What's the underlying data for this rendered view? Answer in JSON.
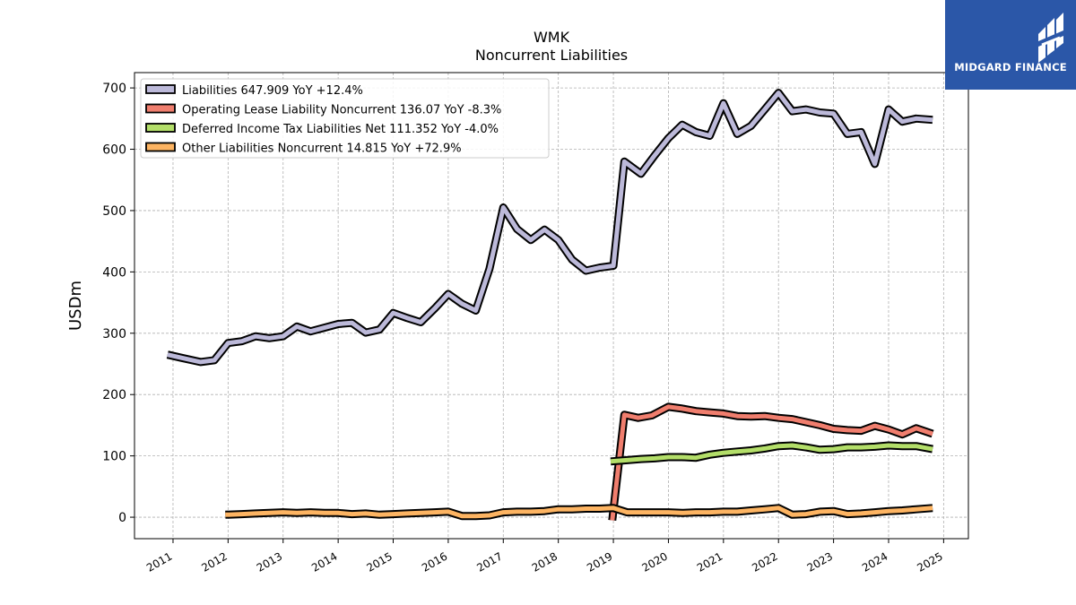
{
  "chart_data": {
    "type": "line",
    "title": "WMK",
    "subtitle": "Noncurrent  Liabilities",
    "xlabel": "",
    "ylabel": "USDm",
    "ylim": [
      -35,
      725
    ],
    "xlim": [
      2010.3,
      2025.45
    ],
    "yticks": [
      0,
      100,
      200,
      300,
      400,
      500,
      600,
      700
    ],
    "xticks": [
      "2011",
      "2012",
      "2013",
      "2014",
      "2015",
      "2016",
      "2017",
      "2018",
      "2019",
      "2020",
      "2021",
      "2022",
      "2023",
      "2024",
      "2025"
    ],
    "grid": true,
    "legend_position": "top-left",
    "series": [
      {
        "name": "Liabilities  647.909 YoY +12.4%",
        "color": "#bcb9d9",
        "points": [
          [
            2010.9,
            265
          ],
          [
            2011.15,
            260
          ],
          [
            2011.5,
            253
          ],
          [
            2011.75,
            256
          ],
          [
            2012.0,
            284
          ],
          [
            2012.25,
            287
          ],
          [
            2012.5,
            295
          ],
          [
            2012.75,
            292
          ],
          [
            2013.0,
            295
          ],
          [
            2013.25,
            311
          ],
          [
            2013.5,
            303
          ],
          [
            2013.75,
            309
          ],
          [
            2014.0,
            315
          ],
          [
            2014.25,
            317
          ],
          [
            2014.5,
            301
          ],
          [
            2014.75,
            306
          ],
          [
            2015.0,
            333
          ],
          [
            2015.25,
            325
          ],
          [
            2015.5,
            318
          ],
          [
            2015.75,
            340
          ],
          [
            2016.0,
            364
          ],
          [
            2016.25,
            348
          ],
          [
            2016.5,
            337
          ],
          [
            2016.75,
            405
          ],
          [
            2017.0,
            505
          ],
          [
            2017.25,
            470
          ],
          [
            2017.5,
            452
          ],
          [
            2017.75,
            469
          ],
          [
            2018.0,
            452
          ],
          [
            2018.25,
            420
          ],
          [
            2018.5,
            402
          ],
          [
            2018.75,
            407
          ],
          [
            2019.0,
            410
          ],
          [
            2019.2,
            580
          ],
          [
            2019.5,
            560
          ],
          [
            2019.75,
            590
          ],
          [
            2020.0,
            618
          ],
          [
            2020.25,
            640
          ],
          [
            2020.5,
            628
          ],
          [
            2020.75,
            622
          ],
          [
            2021.0,
            675
          ],
          [
            2021.25,
            625
          ],
          [
            2021.5,
            638
          ],
          [
            2021.75,
            665
          ],
          [
            2022.0,
            692
          ],
          [
            2022.25,
            662
          ],
          [
            2022.5,
            665
          ],
          [
            2022.75,
            660
          ],
          [
            2023.0,
            658
          ],
          [
            2023.25,
            625
          ],
          [
            2023.5,
            628
          ],
          [
            2023.75,
            576
          ],
          [
            2024.0,
            665
          ],
          [
            2024.25,
            645
          ],
          [
            2024.5,
            650
          ],
          [
            2024.8,
            648
          ]
        ]
      },
      {
        "name": "Operating Lease Liability Noncurrent  136.07 YoY -8.3%",
        "color": "#f07e6e",
        "points": [
          [
            2018.98,
            -5
          ],
          [
            2019.2,
            167
          ],
          [
            2019.45,
            162
          ],
          [
            2019.7,
            166
          ],
          [
            2020.0,
            180
          ],
          [
            2020.25,
            177
          ],
          [
            2020.5,
            173
          ],
          [
            2020.75,
            171
          ],
          [
            2021.0,
            169
          ],
          [
            2021.25,
            165
          ],
          [
            2021.5,
            164
          ],
          [
            2021.75,
            165
          ],
          [
            2022.0,
            162
          ],
          [
            2022.25,
            160
          ],
          [
            2022.5,
            155
          ],
          [
            2022.75,
            150
          ],
          [
            2023.0,
            144
          ],
          [
            2023.25,
            142
          ],
          [
            2023.5,
            141
          ],
          [
            2023.75,
            149
          ],
          [
            2024.0,
            143
          ],
          [
            2024.25,
            135
          ],
          [
            2024.5,
            145
          ],
          [
            2024.8,
            136
          ]
        ]
      },
      {
        "name": "Deferred Income Tax Liabilities Net  111.352 YoY -4.0%",
        "color": "#b3de69",
        "points": [
          [
            2018.95,
            91
          ],
          [
            2019.25,
            93
          ],
          [
            2019.5,
            95
          ],
          [
            2019.75,
            96
          ],
          [
            2020.0,
            98
          ],
          [
            2020.25,
            98
          ],
          [
            2020.5,
            97
          ],
          [
            2020.75,
            102
          ],
          [
            2021.0,
            105
          ],
          [
            2021.25,
            107
          ],
          [
            2021.5,
            109
          ],
          [
            2021.75,
            112
          ],
          [
            2022.0,
            116
          ],
          [
            2022.25,
            117
          ],
          [
            2022.5,
            114
          ],
          [
            2022.75,
            110
          ],
          [
            2023.0,
            111
          ],
          [
            2023.25,
            114
          ],
          [
            2023.5,
            114
          ],
          [
            2023.75,
            115
          ],
          [
            2024.0,
            117
          ],
          [
            2024.25,
            116
          ],
          [
            2024.5,
            116
          ],
          [
            2024.8,
            111
          ]
        ]
      },
      {
        "name": "Other Liabilities Noncurrent  14.815 YoY +72.9%",
        "color": "#fdb462",
        "points": [
          [
            2011.95,
            4
          ],
          [
            2012.25,
            5
          ],
          [
            2012.5,
            6
          ],
          [
            2012.75,
            7
          ],
          [
            2013.0,
            8
          ],
          [
            2013.25,
            7
          ],
          [
            2013.5,
            8
          ],
          [
            2013.75,
            7
          ],
          [
            2014.0,
            7
          ],
          [
            2014.25,
            5
          ],
          [
            2014.5,
            6
          ],
          [
            2014.75,
            4
          ],
          [
            2015.0,
            5
          ],
          [
            2015.25,
            6
          ],
          [
            2015.5,
            7
          ],
          [
            2015.75,
            8
          ],
          [
            2016.0,
            9
          ],
          [
            2016.25,
            2
          ],
          [
            2016.5,
            2
          ],
          [
            2016.75,
            3
          ],
          [
            2017.0,
            8
          ],
          [
            2017.25,
            9
          ],
          [
            2017.5,
            9
          ],
          [
            2017.75,
            10
          ],
          [
            2018.0,
            13
          ],
          [
            2018.25,
            13
          ],
          [
            2018.5,
            14
          ],
          [
            2018.75,
            14
          ],
          [
            2019.0,
            15
          ],
          [
            2019.25,
            8
          ],
          [
            2019.5,
            8
          ],
          [
            2019.75,
            8
          ],
          [
            2020.0,
            8
          ],
          [
            2020.25,
            7
          ],
          [
            2020.5,
            8
          ],
          [
            2020.75,
            8
          ],
          [
            2021.0,
            9
          ],
          [
            2021.25,
            9
          ],
          [
            2021.5,
            11
          ],
          [
            2021.75,
            13
          ],
          [
            2022.0,
            15
          ],
          [
            2022.25,
            4
          ],
          [
            2022.5,
            5
          ],
          [
            2022.75,
            9
          ],
          [
            2023.0,
            10
          ],
          [
            2023.25,
            5
          ],
          [
            2023.5,
            6
          ],
          [
            2023.75,
            8
          ],
          [
            2024.0,
            10
          ],
          [
            2024.25,
            11
          ],
          [
            2024.5,
            13
          ],
          [
            2024.8,
            15
          ]
        ]
      }
    ]
  },
  "logo": {
    "text": "MIDGARD FINANCE",
    "color": "#2b57a8"
  }
}
